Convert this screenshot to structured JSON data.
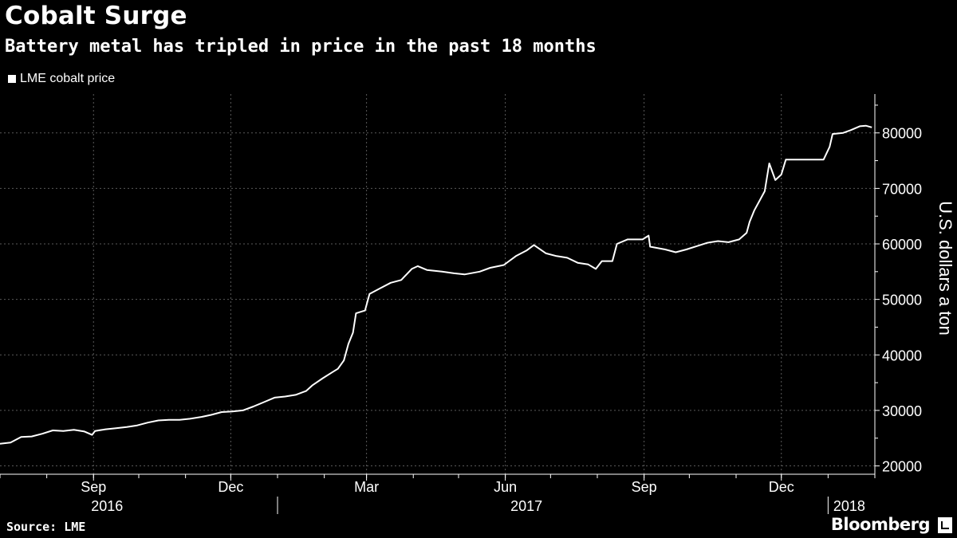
{
  "header": {
    "title": "Cobalt Surge",
    "subtitle": "Battery metal has tripled in price in the past 18 months"
  },
  "footer": {
    "source": "Source: LME",
    "brand": "Bloomberg"
  },
  "colors": {
    "background": "#000000",
    "line": "#ffffff",
    "grid": "#5a5a5a"
  },
  "chart_data": {
    "type": "line",
    "title": "Cobalt Surge",
    "subtitle": "Battery metal has tripled in price in the past 18 months",
    "xlabel": "",
    "ylabel": "U.S. dollars a ton",
    "ylim": [
      18500,
      87000
    ],
    "xlim": [
      "2016-07-01",
      "2018-02-01"
    ],
    "yticks": [
      20000,
      30000,
      40000,
      50000,
      60000,
      70000,
      80000
    ],
    "ytick_labels": [
      "20000",
      "30000",
      "40000",
      "50000",
      "60000",
      "70000",
      "80000"
    ],
    "xticks": [
      {
        "date": "2016-09-01",
        "label": "Sep"
      },
      {
        "date": "2016-12-01",
        "label": "Dec"
      },
      {
        "date": "2017-03-01",
        "label": "Mar"
      },
      {
        "date": "2017-06-01",
        "label": "Jun"
      },
      {
        "date": "2017-09-01",
        "label": "Sep"
      },
      {
        "date": "2017-12-01",
        "label": "Dec"
      }
    ],
    "years": [
      {
        "label": "2016",
        "center": "2016-09-10"
      },
      {
        "label": "2017",
        "center": "2017-06-15"
      },
      {
        "label": "2018",
        "center": "2018-01-15"
      }
    ],
    "year_dividers": [
      "2017-01-01",
      "2018-01-01"
    ],
    "grid": true,
    "legend_position": "top-left",
    "series": [
      {
        "name": "LME cobalt price",
        "color": "#ffffff",
        "points": [
          [
            "2016-07-01",
            24000
          ],
          [
            "2016-07-08",
            24200
          ],
          [
            "2016-07-15",
            25200
          ],
          [
            "2016-07-22",
            25300
          ],
          [
            "2016-07-29",
            25800
          ],
          [
            "2016-08-05",
            26400
          ],
          [
            "2016-08-12",
            26300
          ],
          [
            "2016-08-19",
            26500
          ],
          [
            "2016-08-26",
            26200
          ],
          [
            "2016-08-31",
            25600
          ],
          [
            "2016-09-02",
            26300
          ],
          [
            "2016-09-09",
            26600
          ],
          [
            "2016-09-16",
            26800
          ],
          [
            "2016-09-23",
            27000
          ],
          [
            "2016-09-30",
            27300
          ],
          [
            "2016-10-07",
            27800
          ],
          [
            "2016-10-14",
            28200
          ],
          [
            "2016-10-21",
            28300
          ],
          [
            "2016-10-28",
            28300
          ],
          [
            "2016-11-04",
            28500
          ],
          [
            "2016-11-11",
            28800
          ],
          [
            "2016-11-18",
            29200
          ],
          [
            "2016-11-25",
            29700
          ],
          [
            "2016-12-02",
            29800
          ],
          [
            "2016-12-09",
            30000
          ],
          [
            "2016-12-16",
            30700
          ],
          [
            "2016-12-23",
            31500
          ],
          [
            "2016-12-30",
            32300
          ],
          [
            "2017-01-06",
            32500
          ],
          [
            "2017-01-13",
            32800
          ],
          [
            "2017-01-20",
            33500
          ],
          [
            "2017-01-24",
            34500
          ],
          [
            "2017-01-31",
            35800
          ],
          [
            "2017-02-07",
            37000
          ],
          [
            "2017-02-10",
            37500
          ],
          [
            "2017-02-14",
            39000
          ],
          [
            "2017-02-17",
            42000
          ],
          [
            "2017-02-20",
            44000
          ],
          [
            "2017-02-22",
            47500
          ],
          [
            "2017-02-28",
            48000
          ],
          [
            "2017-03-03",
            51000
          ],
          [
            "2017-03-10",
            52000
          ],
          [
            "2017-03-17",
            53000
          ],
          [
            "2017-03-24",
            53500
          ],
          [
            "2017-03-31",
            55500
          ],
          [
            "2017-04-04",
            56000
          ],
          [
            "2017-04-10",
            55300
          ],
          [
            "2017-04-20",
            55000
          ],
          [
            "2017-04-28",
            54700
          ],
          [
            "2017-05-05",
            54500
          ],
          [
            "2017-05-15",
            55000
          ],
          [
            "2017-05-22",
            55700
          ],
          [
            "2017-05-31",
            56200
          ],
          [
            "2017-06-08",
            57800
          ],
          [
            "2017-06-15",
            58800
          ],
          [
            "2017-06-20",
            59800
          ],
          [
            "2017-06-28",
            58300
          ],
          [
            "2017-07-05",
            57800
          ],
          [
            "2017-07-12",
            57500
          ],
          [
            "2017-07-19",
            56600
          ],
          [
            "2017-07-26",
            56300
          ],
          [
            "2017-07-31",
            55500
          ],
          [
            "2017-08-04",
            56900
          ],
          [
            "2017-08-11",
            56900
          ],
          [
            "2017-08-14",
            60000
          ],
          [
            "2017-08-21",
            60800
          ],
          [
            "2017-08-31",
            60800
          ],
          [
            "2017-09-04",
            61500
          ],
          [
            "2017-09-05",
            59500
          ],
          [
            "2017-09-15",
            59000
          ],
          [
            "2017-09-22",
            58500
          ],
          [
            "2017-09-29",
            59000
          ],
          [
            "2017-10-06",
            59600
          ],
          [
            "2017-10-13",
            60200
          ],
          [
            "2017-10-20",
            60500
          ],
          [
            "2017-10-27",
            60300
          ],
          [
            "2017-11-03",
            60800
          ],
          [
            "2017-11-08",
            62000
          ],
          [
            "2017-11-10",
            64000
          ],
          [
            "2017-11-13",
            66000
          ],
          [
            "2017-11-20",
            69500
          ],
          [
            "2017-11-23",
            74500
          ],
          [
            "2017-11-27",
            71500
          ],
          [
            "2017-12-01",
            72500
          ],
          [
            "2017-12-04",
            75200
          ],
          [
            "2017-12-15",
            75200
          ],
          [
            "2017-12-29",
            75200
          ],
          [
            "2018-01-02",
            77500
          ],
          [
            "2018-01-04",
            79800
          ],
          [
            "2018-01-11",
            80000
          ],
          [
            "2018-01-16",
            80500
          ],
          [
            "2018-01-22",
            81200
          ],
          [
            "2018-01-26",
            81300
          ],
          [
            "2018-01-30",
            81000
          ]
        ]
      }
    ]
  }
}
